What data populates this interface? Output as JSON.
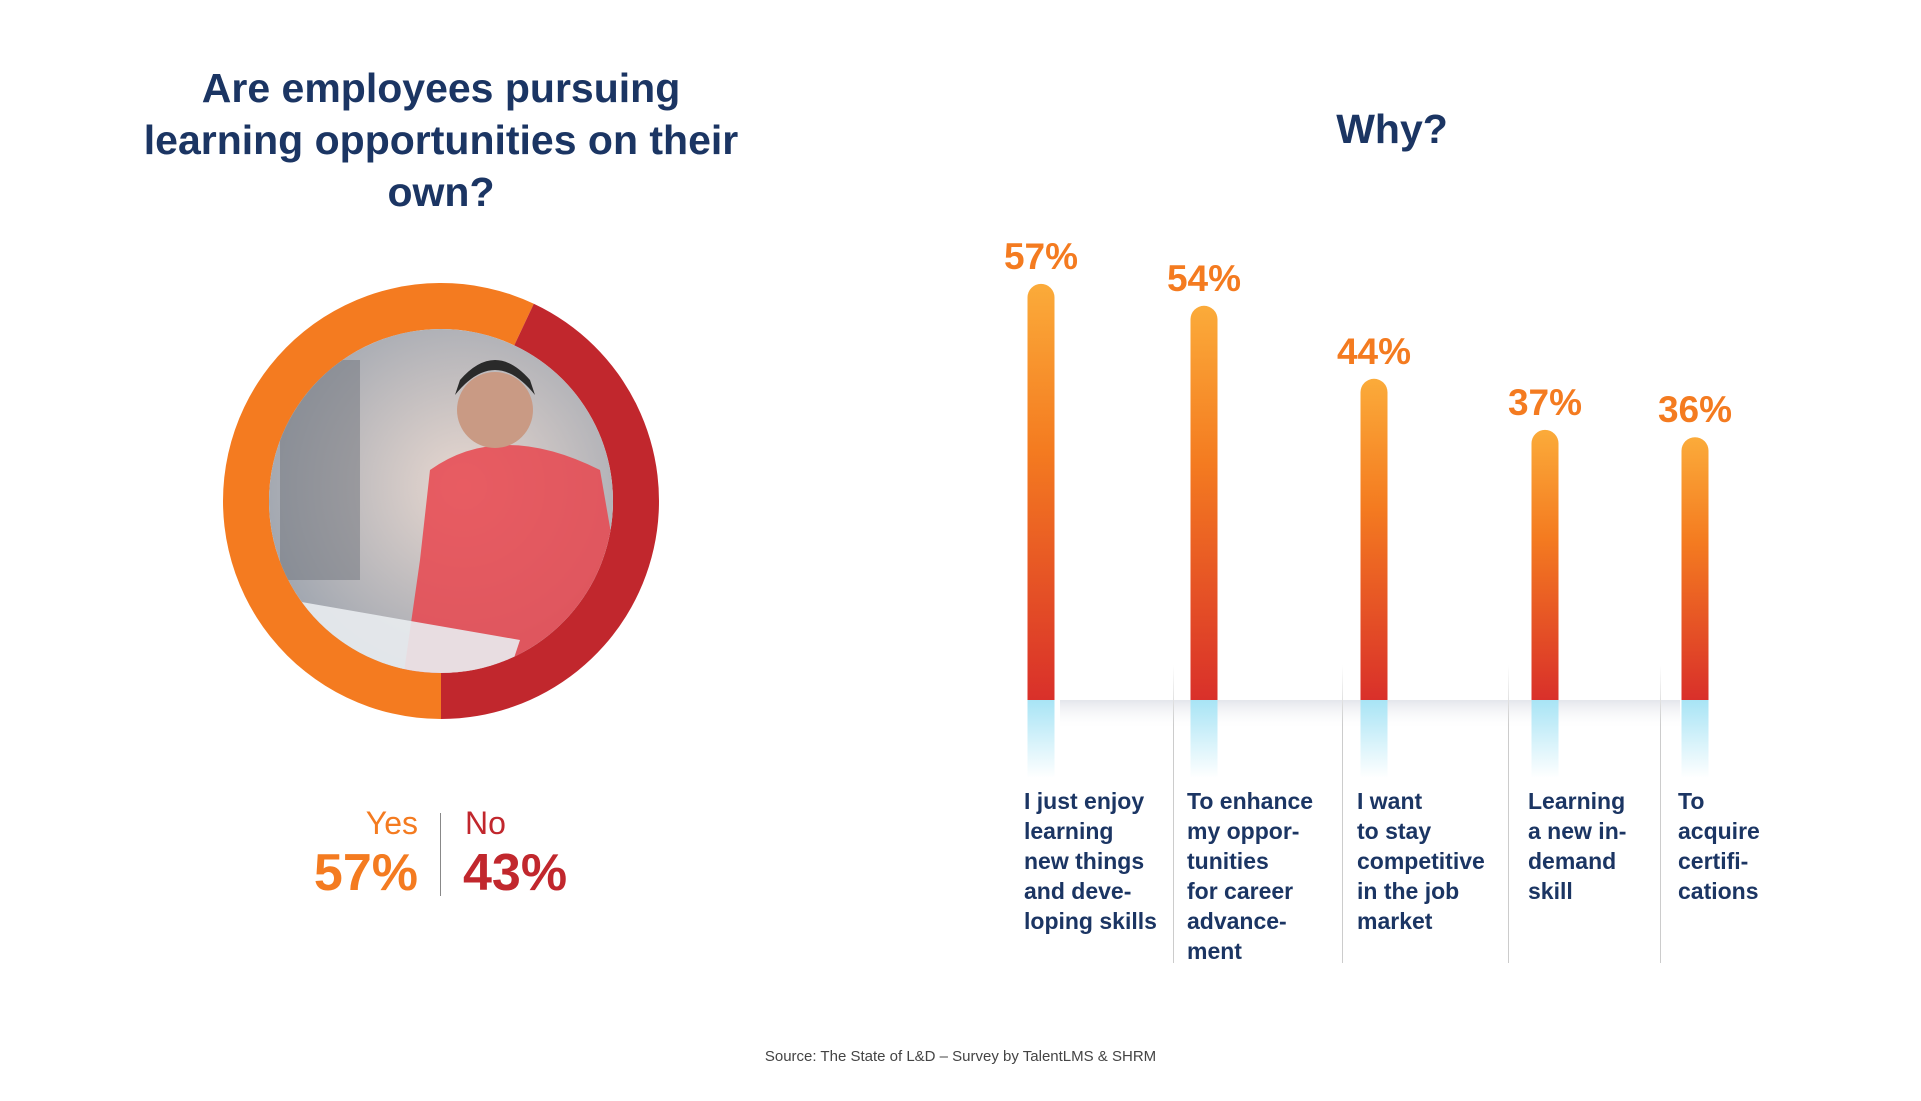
{
  "left_panel": {
    "title": "Are employees pursuing learning opportunities on their own?",
    "yes_label": "Yes",
    "yes_value": "57%",
    "no_label": "No",
    "no_value": "43%"
  },
  "right_panel": {
    "title": "Why?"
  },
  "source": "Source: The State of L&D – Survey by TalentLMS & SHRM",
  "colors": {
    "yes": "#f47b20",
    "no": "#c1272d",
    "title": "#1b3563",
    "bar_top": "#fbab3a",
    "bar_bottom": "#d9302a",
    "reflection": "#a8e4f5"
  },
  "chart_data": [
    {
      "type": "pie",
      "variant": "donut",
      "title": "Are employees pursuing learning opportunities on their own?",
      "categories": [
        "Yes",
        "No"
      ],
      "values": [
        57,
        43
      ],
      "labels": [
        "57%",
        "43%"
      ],
      "center_image": "photo of man working at desk"
    },
    {
      "type": "bar",
      "title": "Why?",
      "categories": [
        "I just enjoy learning new things and deve-loping skills",
        "To enhance my oppor-tunities for career advance-ment",
        "I want to stay competitive in the job market",
        "Learning a new in-demand skill",
        "To acquire certifi-cations"
      ],
      "category_lines": [
        [
          "I just enjoy",
          "learning",
          "new things",
          "and deve-",
          "loping skills"
        ],
        [
          "To enhance",
          "my oppor-",
          "tunities",
          "for career",
          "advance-",
          "ment"
        ],
        [
          "I want",
          "to stay",
          "competitive",
          "in the job",
          "market"
        ],
        [
          "Learning",
          "a new in-",
          "demand",
          "skill"
        ],
        [
          "To",
          "acquire",
          "certifi-",
          "cations"
        ]
      ],
      "values": [
        57,
        54,
        44,
        37,
        36
      ],
      "labels": [
        "57%",
        "54%",
        "44%",
        "37%",
        "36%"
      ],
      "unit": "%",
      "grid": false
    }
  ]
}
